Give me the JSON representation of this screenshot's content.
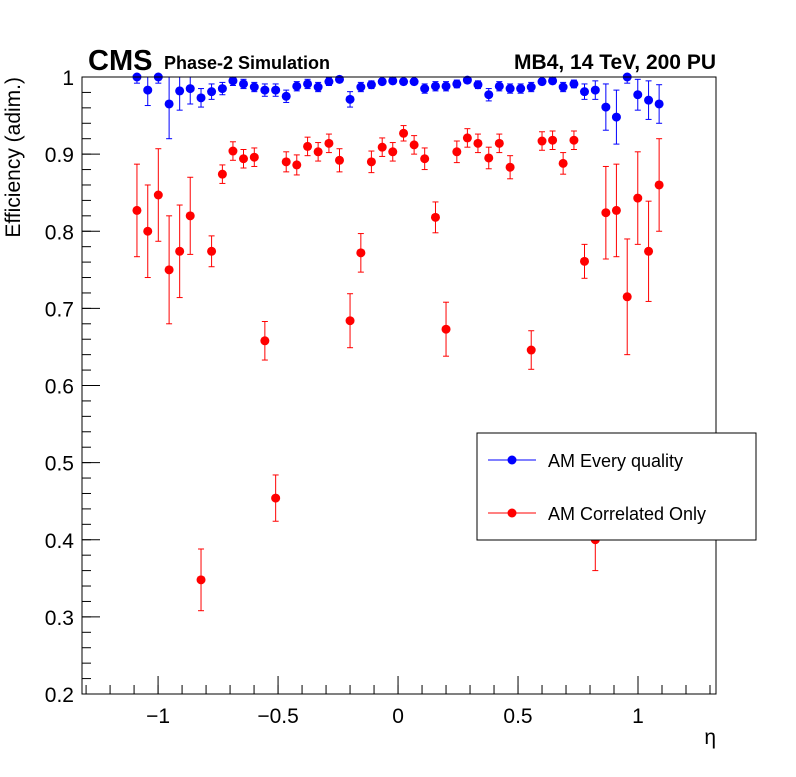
{
  "chart_data": {
    "type": "scatter",
    "header": {
      "experiment": "CMS",
      "subtitle": "Phase-2 Simulation",
      "right_label": "MB4, 14 TeV, 200 PU"
    },
    "xlabel": "η",
    "ylabel": "Efficiency (adim.)",
    "xlim": [
      -1.317,
      1.325
    ],
    "ylim": [
      0.2,
      1.0
    ],
    "xticks": [
      -1,
      -0.5,
      0,
      0.5,
      1
    ],
    "xtick_labels": [
      "−1",
      "−0.5",
      "0",
      "0.5",
      "1"
    ],
    "yticks": [
      0.2,
      0.3,
      0.4,
      0.5,
      0.6,
      0.7,
      0.8,
      0.9,
      1
    ],
    "ytick_labels": [
      "0.2",
      "0.3",
      "0.4",
      "0.5",
      "0.6",
      "0.7",
      "0.8",
      "0.9",
      "1"
    ],
    "grid": false,
    "legend_position": "middle-right",
    "x": [
      -1.088,
      -1.043,
      -0.999,
      -0.954,
      -0.91,
      -0.866,
      -0.821,
      -0.777,
      -0.732,
      -0.688,
      -0.644,
      -0.599,
      -0.555,
      -0.51,
      -0.466,
      -0.422,
      -0.377,
      -0.333,
      -0.288,
      -0.244,
      -0.2,
      -0.155,
      -0.111,
      -0.066,
      -0.022,
      0.023,
      0.067,
      0.111,
      0.156,
      0.2,
      0.245,
      0.289,
      0.333,
      0.378,
      0.422,
      0.467,
      0.511,
      0.555,
      0.6,
      0.644,
      0.688,
      0.733,
      0.777,
      0.822,
      0.866,
      0.91,
      0.955,
      0.999,
      1.044,
      1.088
    ],
    "xerr": 0.011,
    "series": [
      {
        "name": "AM Every quality",
        "color": "#0000ff",
        "values": [
          1.0,
          0.983,
          1.0,
          0.965,
          0.982,
          0.985,
          0.973,
          0.981,
          0.985,
          0.995,
          0.991,
          0.987,
          0.983,
          0.983,
          0.975,
          0.988,
          0.991,
          0.987,
          0.994,
          0.997,
          0.971,
          0.987,
          0.99,
          0.994,
          0.995,
          0.994,
          0.994,
          0.985,
          0.988,
          0.988,
          0.991,
          0.996,
          0.99,
          0.977,
          0.988,
          0.985,
          0.985,
          0.987,
          0.994,
          0.995,
          0.987,
          0.991,
          0.981,
          0.983,
          0.961,
          0.948,
          1.0,
          0.977,
          0.97,
          0.965
        ],
        "errors": [
          0.008,
          0.02,
          0.008,
          0.045,
          0.025,
          0.02,
          0.012,
          0.01,
          0.008,
          0.006,
          0.006,
          0.006,
          0.008,
          0.008,
          0.008,
          0.006,
          0.006,
          0.006,
          0.005,
          0.004,
          0.01,
          0.006,
          0.005,
          0.004,
          0.004,
          0.004,
          0.004,
          0.006,
          0.006,
          0.006,
          0.005,
          0.004,
          0.005,
          0.008,
          0.006,
          0.006,
          0.006,
          0.006,
          0.004,
          0.004,
          0.006,
          0.005,
          0.01,
          0.012,
          0.03,
          0.035,
          0.008,
          0.02,
          0.025,
          0.025
        ]
      },
      {
        "name": "AM Correlated Only",
        "color": "#ff0000",
        "values": [
          0.827,
          0.8,
          0.847,
          0.75,
          0.774,
          0.82,
          0.348,
          0.774,
          0.874,
          0.904,
          0.894,
          0.896,
          0.658,
          0.454,
          0.89,
          0.886,
          0.91,
          0.903,
          0.914,
          0.892,
          0.684,
          0.772,
          0.89,
          0.909,
          0.903,
          0.927,
          0.912,
          0.894,
          0.818,
          0.673,
          0.903,
          0.921,
          0.914,
          0.895,
          0.914,
          0.883,
          null,
          0.646,
          0.917,
          0.918,
          0.888,
          0.918,
          0.761,
          0.4,
          0.824,
          0.827,
          0.715,
          0.843,
          0.774,
          0.86
        ],
        "errors": [
          0.06,
          0.06,
          0.06,
          0.07,
          0.06,
          0.05,
          0.04,
          0.02,
          0.012,
          0.012,
          0.012,
          0.012,
          0.025,
          0.03,
          0.013,
          0.013,
          0.012,
          0.012,
          0.012,
          0.015,
          0.035,
          0.025,
          0.014,
          0.012,
          0.012,
          0.01,
          0.012,
          0.014,
          0.02,
          0.035,
          0.014,
          0.012,
          0.012,
          0.014,
          0.012,
          0.015,
          null,
          0.025,
          0.012,
          0.012,
          0.014,
          0.012,
          0.022,
          0.04,
          0.06,
          0.06,
          0.075,
          0.06,
          0.065,
          0.06
        ]
      }
    ]
  }
}
